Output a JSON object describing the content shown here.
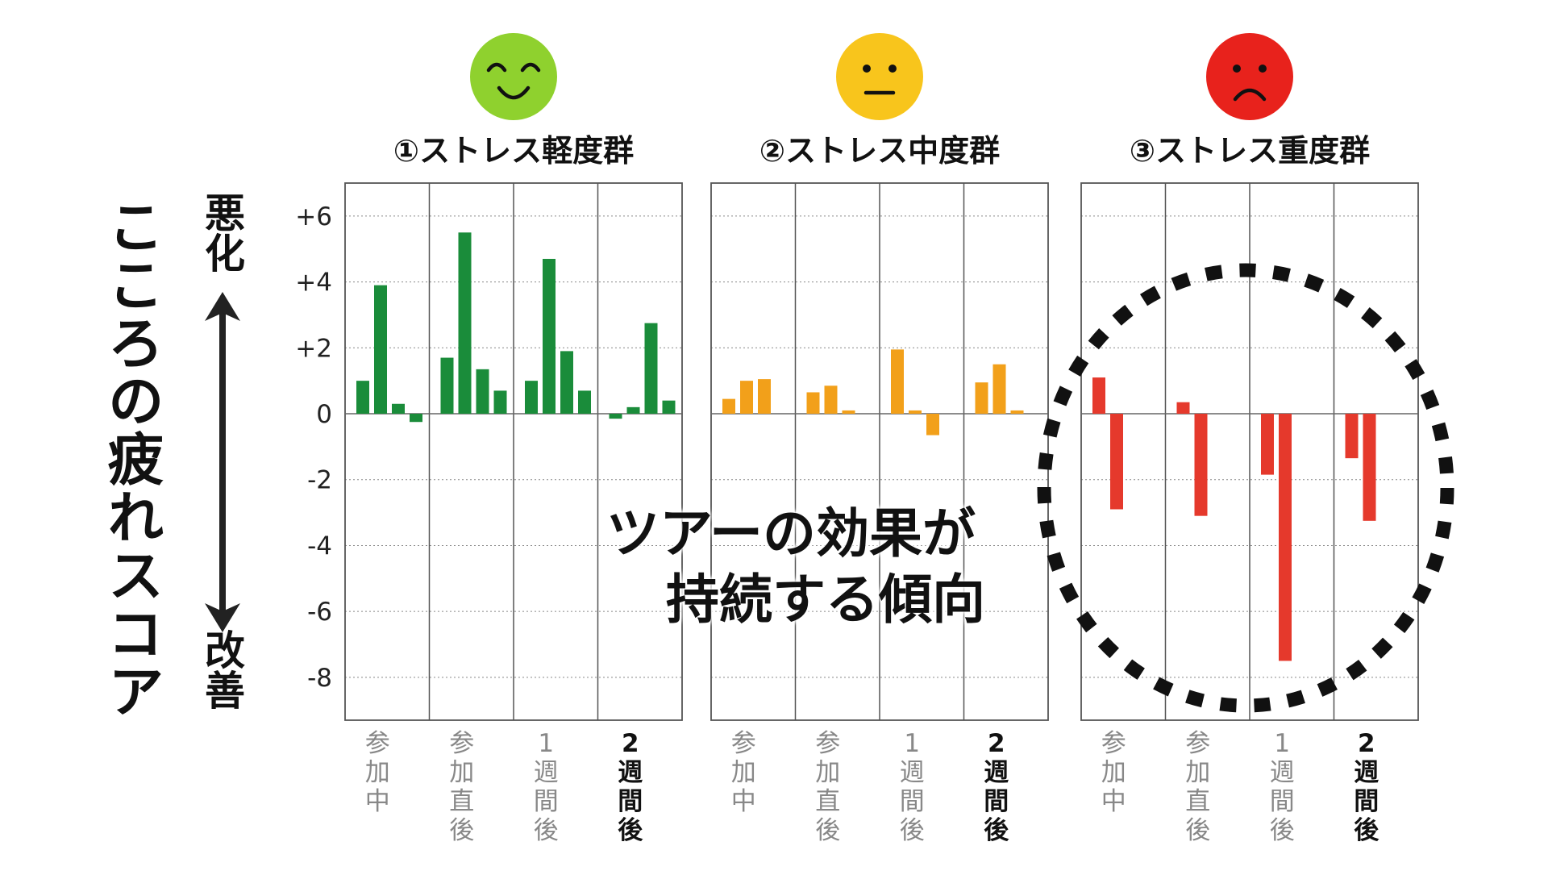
{
  "ylabel": "こころの疲れスコア",
  "direction": {
    "up": "悪化",
    "down": "改善"
  },
  "callout": {
    "line1": "ツアーの効果が",
    "line2": "持続する傾向"
  },
  "chart_data": {
    "type": "bar",
    "ylim": [
      -9.3,
      7
    ],
    "yticks": [
      {
        "value": 6,
        "label": "+6"
      },
      {
        "value": 4,
        "label": "+4"
      },
      {
        "value": 2,
        "label": "+2"
      },
      {
        "value": 0,
        "label": "0"
      },
      {
        "value": -2,
        "label": "-2"
      },
      {
        "value": -4,
        "label": "-4"
      },
      {
        "value": -6,
        "label": "-6"
      },
      {
        "value": -8,
        "label": "-8"
      }
    ],
    "grid": true,
    "categories": [
      {
        "label": "参加中",
        "bold": false
      },
      {
        "label": "参加直後",
        "bold": false
      },
      {
        "label": "1週間後",
        "bold": false
      },
      {
        "label": "2週間後",
        "bold": true
      }
    ],
    "panels": [
      {
        "title": "①ストレス軽度群",
        "face": "smile",
        "color": "#1a8c3a",
        "face_color": "#8fd12e",
        "values": [
          [
            1.0,
            3.9,
            0.3,
            -0.25
          ],
          [
            1.7,
            5.5,
            1.35,
            0.7
          ],
          [
            1.0,
            4.7,
            1.9,
            0.7
          ],
          [
            -0.15,
            0.2,
            2.75,
            0.4
          ]
        ]
      },
      {
        "title": "②ストレス中度群",
        "face": "neutral",
        "color": "#f2a01a",
        "face_color": "#f8c51c",
        "values": [
          [
            0.45,
            1.0,
            1.05
          ],
          [
            0.65,
            0.85,
            0.1
          ],
          [
            1.95,
            0.1,
            -0.65
          ],
          [
            0.95,
            1.5,
            0.1
          ]
        ]
      },
      {
        "title": "③ストレス重度群",
        "face": "frown",
        "color": "#e5392c",
        "face_color": "#e8221c",
        "values": [
          [
            1.1,
            -2.9
          ],
          [
            0.35,
            -3.1
          ],
          [
            -1.85,
            -7.5
          ],
          [
            -1.35,
            -3.25
          ]
        ]
      }
    ]
  }
}
